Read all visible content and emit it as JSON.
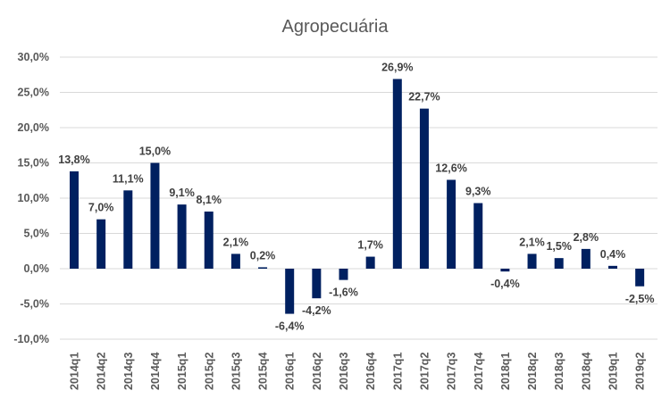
{
  "chart_data": {
    "type": "bar",
    "title": "Agropecuária",
    "xlabel": "",
    "ylabel": "",
    "ylim": [
      -10,
      30
    ],
    "yticks": [
      30,
      25,
      20,
      15,
      10,
      5,
      0,
      -5,
      -10
    ],
    "ytick_labels": [
      "30,0%",
      "25,0%",
      "20,0%",
      "15,0%",
      "10,0%",
      "5,0%",
      "0,0%",
      "-5,0%",
      "-10,0%"
    ],
    "grid": true,
    "bar_color": "#002060",
    "categories": [
      "2014q1",
      "2014q2",
      "2014q3",
      "2014q4",
      "2015q1",
      "2015q2",
      "2015q3",
      "2015q4",
      "2016q1",
      "2016q2",
      "2016q3",
      "2016q4",
      "2017q1",
      "2017q2",
      "2017q3",
      "2017q4",
      "2018q1",
      "2018q2",
      "2018q3",
      "2018q4",
      "2019q1",
      "2019q2"
    ],
    "values": [
      13.8,
      7.0,
      11.1,
      15.0,
      9.1,
      8.1,
      2.1,
      0.2,
      -6.4,
      -4.2,
      -1.6,
      1.7,
      26.9,
      22.7,
      12.6,
      9.3,
      -0.4,
      2.1,
      1.5,
      2.8,
      0.4,
      -2.5
    ],
    "data_labels": [
      "13,8%",
      "7,0%",
      "11,1%",
      "15,0%",
      "9,1%",
      "8,1%",
      "2,1%",
      "0,2%",
      "-6,4%",
      "-4,2%",
      "-1,6%",
      "1,7%",
      "26,9%",
      "22,7%",
      "12,6%",
      "9,3%",
      "-0,4%",
      "2,1%",
      "1,5%",
      "2,8%",
      "0,4%",
      "-2,5%"
    ]
  }
}
